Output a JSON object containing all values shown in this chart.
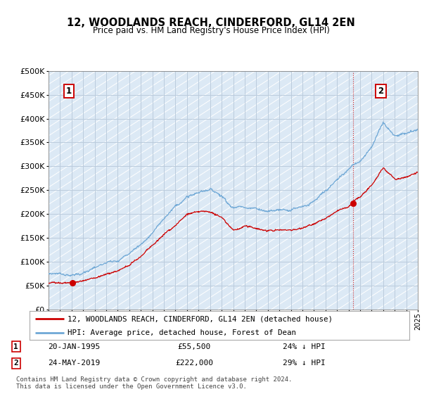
{
  "title": "12, WOODLANDS REACH, CINDERFORD, GL14 2EN",
  "subtitle": "Price paid vs. HM Land Registry's House Price Index (HPI)",
  "legend_line1": "12, WOODLANDS REACH, CINDERFORD, GL14 2EN (detached house)",
  "legend_line2": "HPI: Average price, detached house, Forest of Dean",
  "annotation1_date": "20-JAN-1995",
  "annotation1_price": "£55,500",
  "annotation1_hpi": "24% ↓ HPI",
  "annotation2_date": "24-MAY-2019",
  "annotation2_price": "£222,000",
  "annotation2_hpi": "29% ↓ HPI",
  "footer": "Contains HM Land Registry data © Crown copyright and database right 2024.\nThis data is licensed under the Open Government Licence v3.0.",
  "hpi_color": "#6fa8d6",
  "price_color": "#cc0000",
  "bg_hatch_color": "#dce9f5",
  "grid_color": "#bbccdd",
  "ylim_min": 0,
  "ylim_max": 500000,
  "year_start": 1993,
  "year_end": 2025,
  "sale1_year": 1995.05,
  "sale1_value": 55500,
  "sale2_year": 2019.39,
  "sale2_value": 222000
}
